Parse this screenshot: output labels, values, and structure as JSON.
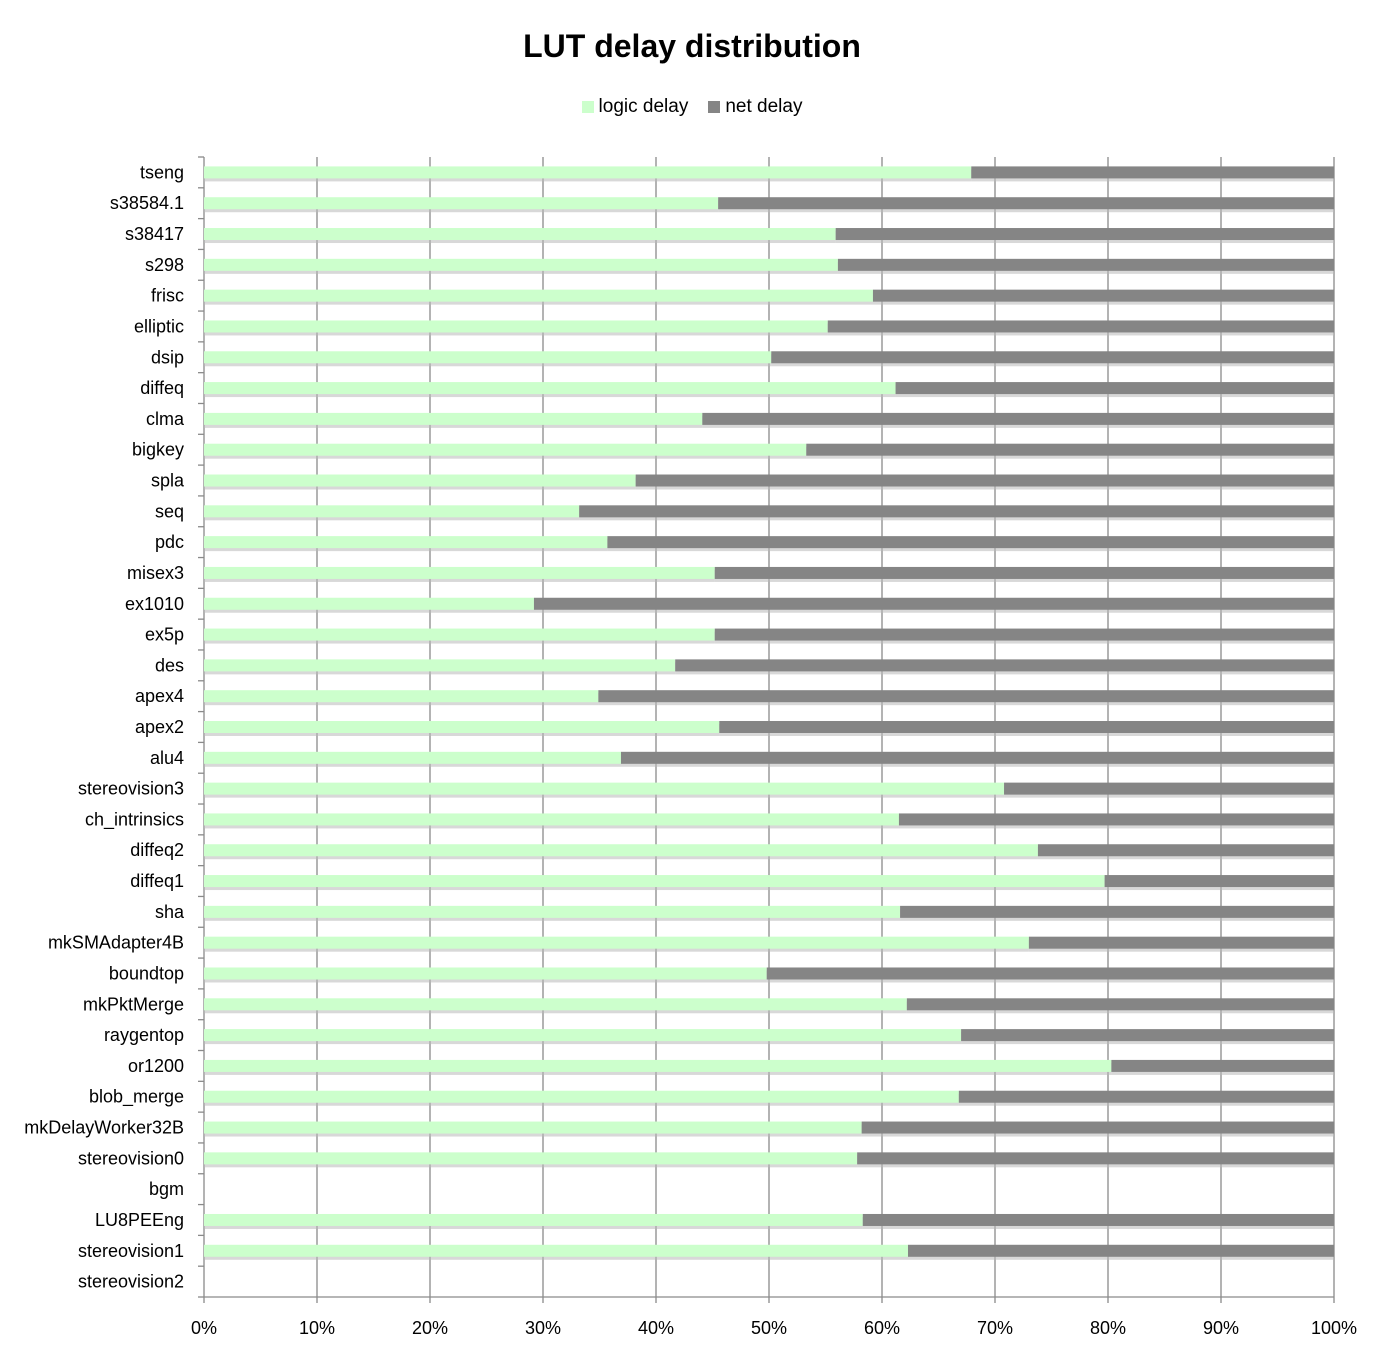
{
  "chart_data": {
    "type": "bar",
    "orientation": "horizontal",
    "stacked_percent": true,
    "title": "LUT delay distribution",
    "xlabel": "",
    "ylabel": "",
    "xlim": [
      0,
      100
    ],
    "x_tick_labels": [
      "0%",
      "10%",
      "20%",
      "30%",
      "40%",
      "50%",
      "60%",
      "70%",
      "80%",
      "90%",
      "100%"
    ],
    "grid": true,
    "legend": "top-center",
    "categories": [
      "tseng",
      "s38584.1",
      "s38417",
      "s298",
      "frisc",
      "elliptic",
      "dsip",
      "diffeq",
      "clma",
      "bigkey",
      "spla",
      "seq",
      "pdc",
      "misex3",
      "ex1010",
      "ex5p",
      "des",
      "apex4",
      "apex2",
      "alu4",
      "stereovision3",
      "ch_intrinsics",
      "diffeq2",
      "diffeq1",
      "sha",
      "mkSMAdapter4B",
      "boundtop",
      "mkPktMerge",
      "raygentop",
      "or1200",
      "blob_merge",
      "mkDelayWorker32B",
      "stereovision0",
      "bgm",
      "LU8PEEng",
      "stereovision1",
      "stereovision2"
    ],
    "series": [
      {
        "name": "logic delay",
        "color": "#ccffcc",
        "values": [
          67.9,
          45.5,
          55.9,
          56.1,
          59.2,
          55.2,
          50.2,
          61.2,
          44.1,
          53.3,
          38.2,
          33.2,
          35.7,
          45.2,
          29.2,
          45.2,
          41.7,
          34.9,
          45.6,
          36.9,
          70.8,
          61.5,
          73.8,
          79.7,
          61.6,
          73.0,
          49.8,
          62.2,
          67.0,
          80.3,
          66.8,
          58.2,
          57.8,
          null,
          58.3,
          62.3,
          null
        ]
      },
      {
        "name": "net delay",
        "color": "#858585",
        "values": [
          32.1,
          54.5,
          44.1,
          43.9,
          40.8,
          44.8,
          49.8,
          38.8,
          55.9,
          46.7,
          61.8,
          66.8,
          64.3,
          54.8,
          70.8,
          54.8,
          58.3,
          65.1,
          54.4,
          63.1,
          29.2,
          38.5,
          26.2,
          20.3,
          38.4,
          27.0,
          50.2,
          37.8,
          33.0,
          19.7,
          33.2,
          41.8,
          42.2,
          null,
          41.7,
          37.7,
          null
        ]
      }
    ]
  }
}
